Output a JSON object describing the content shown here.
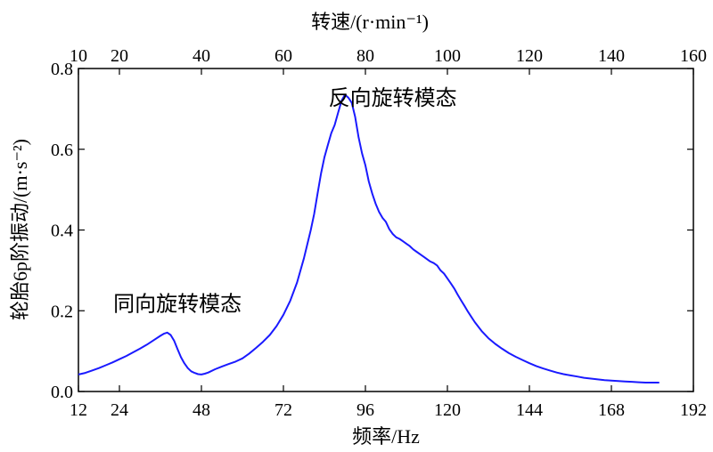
{
  "chart_data": {
    "type": "line",
    "title": "",
    "xlabel": "频率/Hz",
    "ylabel": "轮胎6p阶振动/(m·s⁻²)",
    "xlabel_top": "转速/(r·min⁻¹)",
    "xlim": [
      12,
      192
    ],
    "ylim": [
      0,
      0.8
    ],
    "x_ticks": [
      "12",
      "24",
      "48",
      "72",
      "96",
      "120",
      "144",
      "168",
      "192"
    ],
    "x_tick_values": [
      12,
      24,
      48,
      72,
      96,
      120,
      144,
      168,
      192
    ],
    "y_ticks": [
      "0.0",
      "0.2",
      "0.4",
      "0.6",
      "0.8"
    ],
    "y_tick_values": [
      0,
      0.2,
      0.4,
      0.6,
      0.8
    ],
    "top_ticks": [
      "10",
      "20",
      "40",
      "60",
      "80",
      "100",
      "120",
      "140",
      "160"
    ],
    "top_tick_values": [
      10,
      20,
      40,
      60,
      80,
      100,
      120,
      140,
      160
    ],
    "top_scale_hz_per_unit": 1.2,
    "grid": false,
    "line_color": "#1a1aff",
    "annotations": [
      {
        "text": "同向旋转模态",
        "x": 41,
        "y": 0.2
      },
      {
        "text": "反向旋转模态",
        "x": 104,
        "y": 0.71
      }
    ],
    "series": [
      {
        "x": [
          12,
          14,
          16,
          18,
          20,
          22,
          24,
          26,
          28,
          30,
          32,
          34,
          36,
          37,
          38,
          39,
          40,
          41,
          42,
          43,
          44,
          45,
          46,
          47,
          48,
          49,
          50,
          52,
          54,
          56,
          58,
          60,
          62,
          64,
          66,
          68,
          70,
          72,
          74,
          76,
          78,
          80,
          81,
          82,
          83,
          84,
          85,
          86,
          87,
          88,
          89,
          90,
          91,
          92,
          93,
          94,
          95,
          96,
          97,
          98,
          99,
          100,
          101,
          102,
          103,
          104,
          105,
          106,
          107,
          108,
          109,
          110,
          111,
          112,
          113,
          114,
          115,
          116,
          117,
          118,
          119,
          120,
          121,
          122,
          123,
          124,
          125,
          126,
          127,
          128,
          130,
          132,
          134,
          136,
          138,
          140,
          142,
          144,
          146,
          148,
          150,
          152,
          154,
          156,
          158,
          160,
          162,
          164,
          166,
          168,
          170,
          172,
          174,
          176,
          178,
          180,
          182
        ],
        "values": [
          0.042,
          0.046,
          0.052,
          0.058,
          0.065,
          0.072,
          0.08,
          0.088,
          0.097,
          0.106,
          0.116,
          0.127,
          0.138,
          0.143,
          0.146,
          0.14,
          0.126,
          0.105,
          0.085,
          0.07,
          0.058,
          0.05,
          0.046,
          0.043,
          0.042,
          0.044,
          0.047,
          0.055,
          0.062,
          0.068,
          0.074,
          0.082,
          0.094,
          0.108,
          0.123,
          0.14,
          0.162,
          0.19,
          0.225,
          0.27,
          0.33,
          0.4,
          0.44,
          0.49,
          0.54,
          0.58,
          0.61,
          0.64,
          0.66,
          0.69,
          0.72,
          0.735,
          0.728,
          0.715,
          0.68,
          0.63,
          0.59,
          0.56,
          0.52,
          0.49,
          0.465,
          0.445,
          0.43,
          0.42,
          0.402,
          0.39,
          0.382,
          0.378,
          0.372,
          0.366,
          0.36,
          0.352,
          0.346,
          0.34,
          0.334,
          0.328,
          0.322,
          0.318,
          0.312,
          0.3,
          0.292,
          0.28,
          0.268,
          0.255,
          0.24,
          0.226,
          0.212,
          0.198,
          0.185,
          0.172,
          0.15,
          0.132,
          0.118,
          0.106,
          0.095,
          0.086,
          0.078,
          0.07,
          0.063,
          0.057,
          0.052,
          0.047,
          0.043,
          0.04,
          0.037,
          0.034,
          0.032,
          0.03,
          0.028,
          0.027,
          0.026,
          0.025,
          0.024,
          0.023,
          0.022,
          0.022,
          0.022
        ]
      }
    ]
  }
}
